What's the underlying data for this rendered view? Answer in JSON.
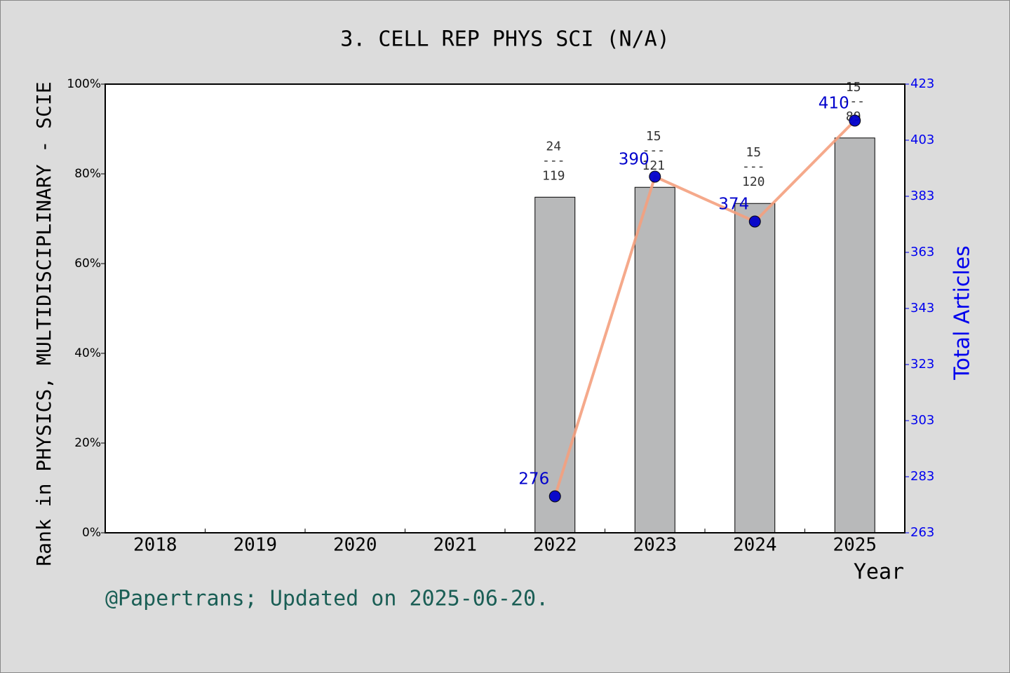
{
  "chart_data": {
    "type": "bar-line",
    "title": "3. CELL REP PHYS SCI (N/A)",
    "ylabel": "Rank in PHYSICS, MULTIDISCIPLINARY - SCIE",
    "y2label": "Total Articles",
    "xlabel": "Year",
    "footer": "@Papertrans; Updated on 2025-06-20.",
    "categories": [
      "2018",
      "2019",
      "2020",
      "2021",
      "2022",
      "2023",
      "2024",
      "2025"
    ],
    "bars": {
      "color": "#b8b9ba",
      "values": [
        null,
        null,
        null,
        null,
        74.8,
        77.0,
        73.4,
        88.0
      ],
      "labels": [
        null,
        null,
        null,
        null,
        {
          "top": "24",
          "bottom": "119"
        },
        {
          "top": "15",
          "bottom": "121"
        },
        {
          "top": "15",
          "bottom": "120"
        },
        {
          "top": "15",
          "bottom": "89"
        }
      ],
      "label_separator": "---"
    },
    "line": {
      "axis": "y2",
      "color": "#f4a07e",
      "marker_color": "#0000cc",
      "values": [
        null,
        null,
        null,
        null,
        276,
        390,
        374,
        410
      ]
    },
    "ylim": [
      0,
      100
    ],
    "yticks": [
      {
        "value": 0,
        "label": "0%"
      },
      {
        "value": 20,
        "label": "20%"
      },
      {
        "value": 40,
        "label": "40%"
      },
      {
        "value": 60,
        "label": "60%"
      },
      {
        "value": 80,
        "label": "80%"
      },
      {
        "value": 100,
        "label": "100%"
      }
    ],
    "y2lim": [
      263,
      423
    ],
    "y2ticks": [
      263,
      283,
      303,
      323,
      343,
      363,
      383,
      403,
      423
    ]
  }
}
